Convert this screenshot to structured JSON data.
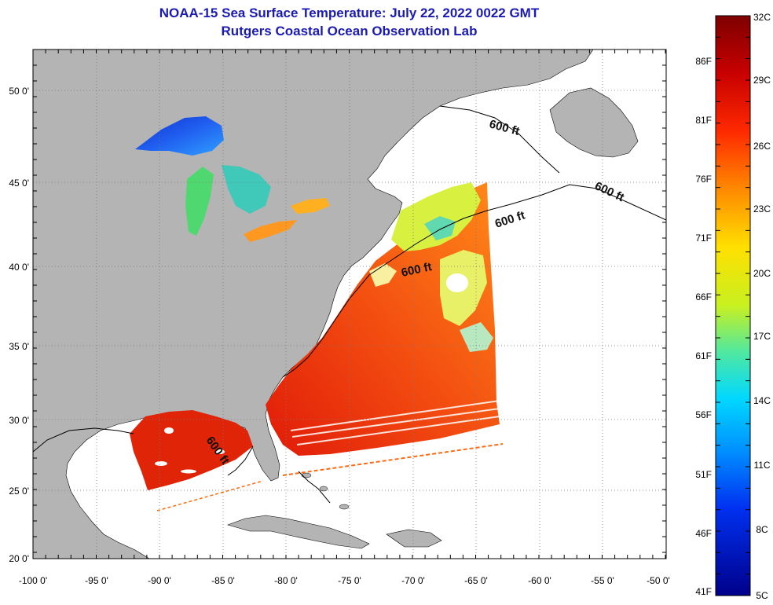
{
  "title": "NOAA-15 Sea Surface Temperature:  July 22, 2022 0022 GMT",
  "subtitle": "Rutgers Coastal Ocean Observation Lab",
  "map": {
    "lon_ticks": [
      "-100 0'",
      "-95 0'",
      "-90 0'",
      "-85 0'",
      "-80 0'",
      "-75 0'",
      "-70 0'",
      "-65 0'",
      "-60 0'",
      "-55 0'",
      "-50 0'"
    ],
    "lat_ticks": [
      "50 0'",
      "45 0'",
      "40 0'",
      "35 0'",
      "30 0'",
      "25 0'",
      "20 0'"
    ],
    "contour_labels": [
      "600 ft",
      "600 ft",
      "600 ft",
      "600 ft",
      "600 ft"
    ],
    "land_color": "#b4b4b4",
    "ocean_color": "#ffffff"
  },
  "colorbar": {
    "celsius_labels": [
      "32C",
      "29C",
      "26C",
      "23C",
      "20C",
      "17C",
      "14C",
      "11C",
      "8C",
      "5C"
    ],
    "fahrenheit_labels": [
      "86F",
      "81F",
      "76F",
      "71F",
      "66F",
      "61F",
      "56F",
      "51F",
      "46F",
      "41F"
    ],
    "colors": [
      "#7f0000",
      "#e8150a",
      "#ff7a0a",
      "#ffee10",
      "#a8e838",
      "#30e8c8",
      "#00b0ff",
      "#0040ff",
      "#00008a"
    ]
  }
}
